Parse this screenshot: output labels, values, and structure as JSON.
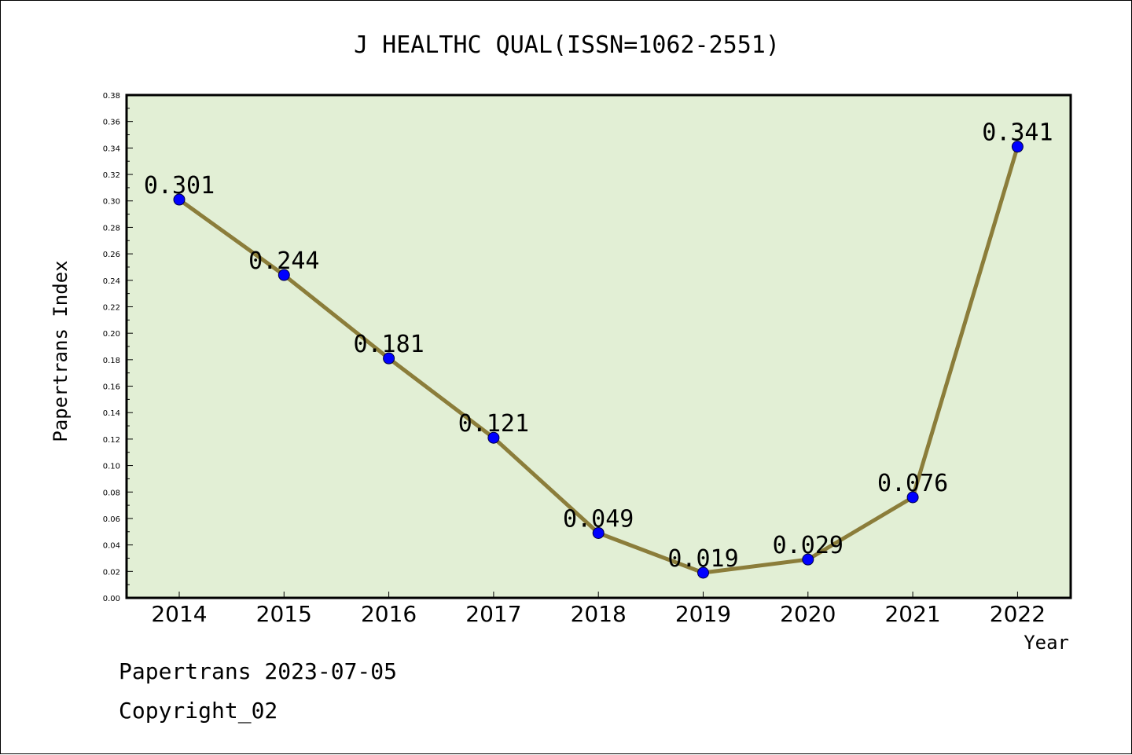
{
  "footer": {
    "line1": "Papertrans 2023-07-05",
    "line2": "Copyright_02"
  },
  "chart_data": {
    "type": "line",
    "title": "J HEALTHC QUAL(ISSN=1062-2551)",
    "xlabel": "Year",
    "ylabel": "Papertrans Index",
    "categories": [
      "2014",
      "2015",
      "2016",
      "2017",
      "2018",
      "2019",
      "2020",
      "2021",
      "2022"
    ],
    "values": [
      0.301,
      0.244,
      0.181,
      0.121,
      0.049,
      0.019,
      0.029,
      0.076,
      0.341
    ],
    "data_labels": [
      "0.301",
      "0.244",
      "0.181",
      "0.121",
      "0.049",
      "0.019",
      "0.029",
      "0.076",
      "0.341"
    ],
    "ylim": [
      0,
      0.38
    ],
    "yticks": [
      "0.00",
      "0.02",
      "0.04",
      "0.06",
      "0.08",
      "0.10",
      "0.12",
      "0.14",
      "0.16",
      "0.18",
      "0.20",
      "0.22",
      "0.24",
      "0.26",
      "0.28",
      "0.30",
      "0.32",
      "0.34",
      "0.36",
      "0.38"
    ],
    "grid": false,
    "colors": {
      "plot_background": "#e2efd5",
      "line": "#8b7d3a",
      "marker": "#0000ff"
    }
  }
}
